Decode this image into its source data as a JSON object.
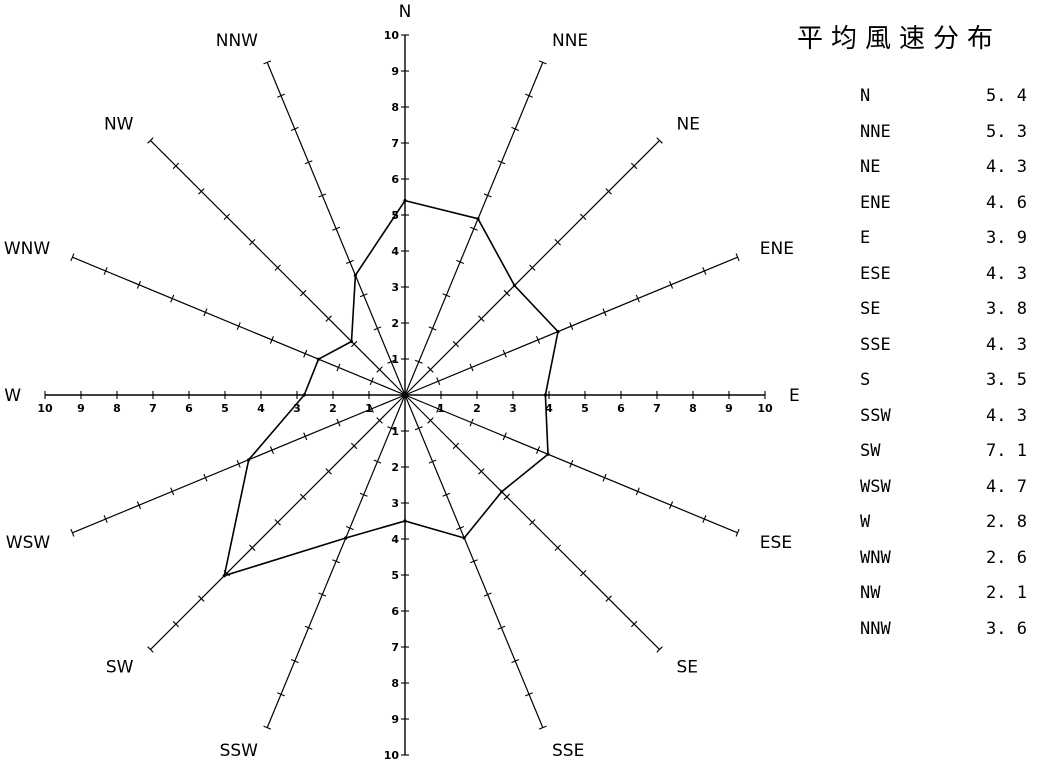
{
  "title": "平均風速分布",
  "chart_data": {
    "type": "radar",
    "directions": [
      "N",
      "NNE",
      "NE",
      "ENE",
      "E",
      "ESE",
      "SE",
      "SSE",
      "S",
      "SSW",
      "SW",
      "WSW",
      "W",
      "WNW",
      "NW",
      "NNW"
    ],
    "values": [
      5.4,
      5.3,
      4.3,
      4.6,
      3.9,
      4.3,
      3.8,
      4.3,
      3.5,
      4.3,
      7.1,
      4.7,
      2.8,
      2.6,
      2.1,
      3.6
    ],
    "rlim": [
      0,
      10
    ],
    "axis_ticks": [
      "1",
      "2",
      "3",
      "4",
      "5",
      "6",
      "7",
      "8",
      "9",
      "10"
    ],
    "axis_ticks_horizontal": [
      "1",
      "2",
      "3",
      "4",
      "5",
      "6",
      "7",
      "8",
      "9",
      "10"
    ],
    "axis_ticks_horizontal_left": [
      "10",
      "9",
      "8",
      "7",
      "6",
      "5",
      "4",
      "3",
      "2",
      "1"
    ]
  },
  "table": [
    {
      "dir": "N",
      "val": "5. 4"
    },
    {
      "dir": "NNE",
      "val": "5. 3"
    },
    {
      "dir": "NE",
      "val": "4. 3"
    },
    {
      "dir": "ENE",
      "val": "4. 6"
    },
    {
      "dir": "E",
      "val": "3. 9"
    },
    {
      "dir": "ESE",
      "val": "4. 3"
    },
    {
      "dir": "SE",
      "val": "3. 8"
    },
    {
      "dir": "SSE",
      "val": "4. 3"
    },
    {
      "dir": "S",
      "val": "3. 5"
    },
    {
      "dir": "SSW",
      "val": "4. 3"
    },
    {
      "dir": "SW",
      "val": "7. 1"
    },
    {
      "dir": "WSW",
      "val": "4. 7"
    },
    {
      "dir": "W",
      "val": "2. 8"
    },
    {
      "dir": "WNW",
      "val": "2. 6"
    },
    {
      "dir": "NW",
      "val": "2. 1"
    },
    {
      "dir": "NNW",
      "val": "3. 6"
    }
  ]
}
